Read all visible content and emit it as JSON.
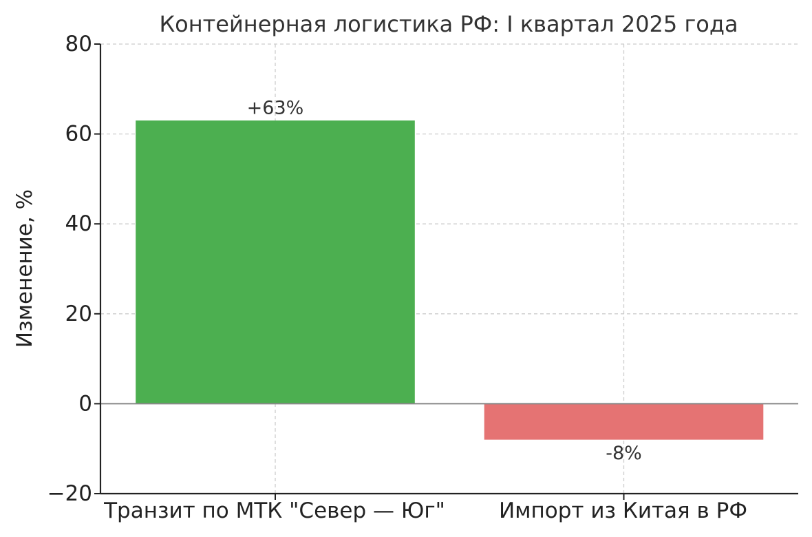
{
  "chart_data": {
    "type": "bar",
    "title": "Контейнерная логистика РФ: I квартал 2025 года",
    "xlabel": "",
    "ylabel": "Изменение, %",
    "categories": [
      "Транзит по МТК \"Север — Юг\"",
      "Импорт из Китая в РФ"
    ],
    "values": [
      63,
      -8
    ],
    "data_labels": [
      "+63%",
      "-8%"
    ],
    "colors": [
      "#4caf50",
      "#e57373"
    ],
    "ylim": [
      -20,
      80
    ],
    "yticks": [
      -20,
      0,
      20,
      40,
      60,
      80
    ],
    "ytick_labels": [
      "−20",
      "0",
      "20",
      "40",
      "60",
      "80"
    ],
    "grid": true,
    "zero_line": true,
    "legend": "none"
  }
}
